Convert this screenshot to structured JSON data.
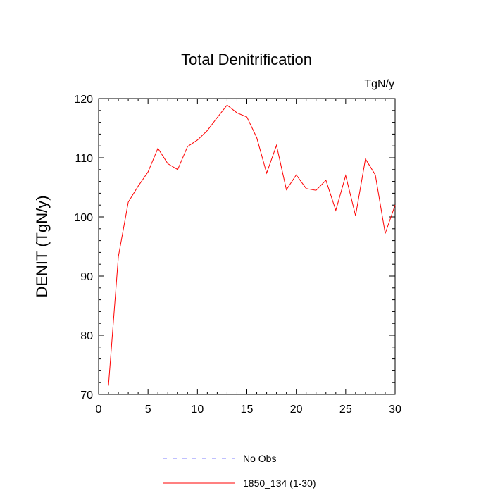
{
  "chart_data": {
    "type": "line",
    "title": "Total Denitrification",
    "units": "TgN/y",
    "ylabel": "DENIT  (TgN/y)",
    "xlabel": "",
    "xlim": [
      0,
      30
    ],
    "ylim": [
      70,
      120
    ],
    "xticks": [
      0,
      5,
      10,
      15,
      20,
      25,
      30
    ],
    "yticks": [
      70,
      80,
      90,
      100,
      110,
      120
    ],
    "x_minor_step": 1,
    "y_minor_step": 2,
    "series": [
      {
        "name": "No Obs",
        "color": "#8080ff",
        "dash": "dashed",
        "x": [],
        "values": []
      },
      {
        "name": "1850_134 (1-30)",
        "color": "#ff0000",
        "dash": "solid",
        "x": [
          1,
          2,
          3,
          4,
          5,
          6,
          7,
          8,
          9,
          10,
          11,
          12,
          13,
          14,
          15,
          16,
          17,
          18,
          19,
          20,
          21,
          22,
          23,
          24,
          25,
          26,
          27,
          28,
          29,
          30
        ],
        "values": [
          71.5,
          93.3,
          102.5,
          105.2,
          107.6,
          111.6,
          109.0,
          108.0,
          111.9,
          113.0,
          114.6,
          116.8,
          118.9,
          117.6,
          116.9,
          113.4,
          107.4,
          112.1,
          104.6,
          107.1,
          104.8,
          104.5,
          106.2,
          101.1,
          107.0,
          100.2,
          109.8,
          107.1,
          97.2,
          102.0
        ]
      }
    ],
    "legend": {
      "placement": "bottom-center",
      "entries": [
        "No Obs",
        "1850_134 (1-30)"
      ]
    }
  }
}
